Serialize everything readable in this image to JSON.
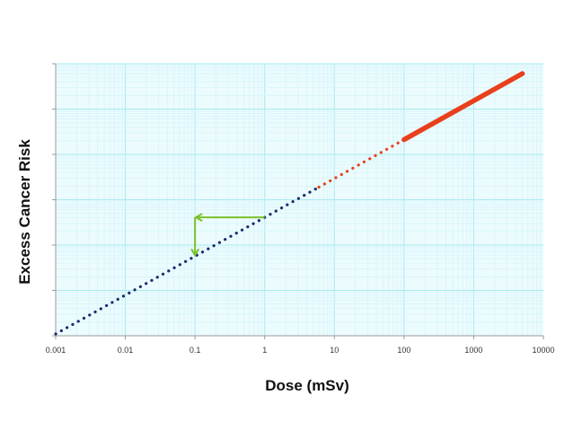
{
  "chart_data": {
    "type": "line",
    "title": "",
    "xlabel": "Dose (mSv)",
    "ylabel": "Excess Cancer Risk",
    "x_scale": "log",
    "xlim": [
      0.001,
      10000
    ],
    "x_ticks": [
      "0.001",
      "0.01",
      "0.1",
      "1",
      "10",
      "100",
      "1000",
      "10000"
    ],
    "y_scale": "log",
    "y_tick_count": 7,
    "y_tick_labels_shown": false,
    "grid": true,
    "legend": "none",
    "series": [
      {
        "style": "dotted",
        "color": "#1f2a6e",
        "x": [
          0.001,
          6
        ]
      },
      {
        "style": "dotted",
        "color": "#e8401c",
        "x": [
          6,
          100
        ]
      },
      {
        "style": "solid",
        "color": "#e8401c",
        "x": [
          100,
          5000
        ]
      }
    ],
    "annotation": {
      "type": "arrow",
      "color": "#7ac02a",
      "path_x": [
        1,
        0.1,
        0.1
      ],
      "description_points": "from line at dose 1 horizontally to dose 0.1, then down to line at dose 0.1"
    },
    "colors": {
      "grid_major": "#a9e8f2",
      "grid_minor": "#d5f5fa",
      "plot_bg": "#ecfbfd",
      "axis": "#9a9a9a"
    }
  }
}
